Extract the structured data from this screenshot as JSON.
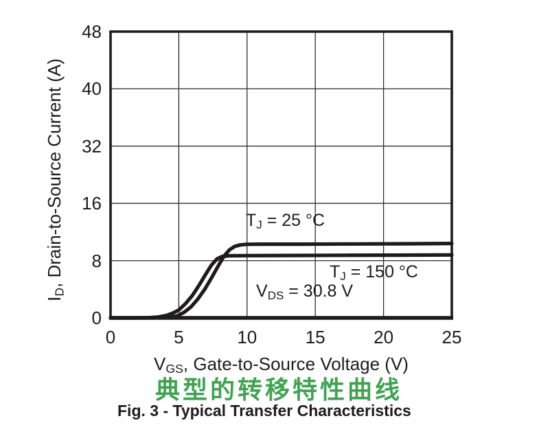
{
  "figure": {
    "caption_cn": "典型的转移特性曲线",
    "caption": "Fig. 3 - Typical Transfer Characteristics",
    "caption_cn_color": "#3FA351",
    "ink_color": "#1D1B1C"
  },
  "chart_data": {
    "type": "line",
    "title": "Fig. 3 - Typical Transfer Characteristics",
    "title_cn": "典型的转移特性曲线",
    "xlabel": {
      "prefix": "V",
      "sub": "GS",
      "rest": ", Gate-to-Source Voltage (V)"
    },
    "ylabel": {
      "prefix": "I",
      "sub": "D",
      "rest": ", Drain-to-Source Current (A)"
    },
    "xlim": [
      0,
      25
    ],
    "x_ticks": [
      "0",
      "5",
      "10",
      "15",
      "20",
      "25"
    ],
    "x_tick_values": [
      0,
      5,
      10,
      15,
      20,
      25
    ],
    "y_ticks": [
      "0",
      "8",
      "16",
      "32",
      "40",
      "48"
    ],
    "y_tick_values": [
      0,
      8,
      16,
      32,
      40,
      48
    ],
    "grid": true,
    "legend_position": "none",
    "annotations": [
      {
        "prefix": "T",
        "sub": "J",
        "rest": " = 25 °C"
      },
      {
        "prefix": "T",
        "sub": "J",
        "rest": " = 150 °C"
      },
      {
        "prefix": "V",
        "sub": "DS",
        "rest": " = 30.8 V"
      }
    ],
    "series": [
      {
        "name": "TJ = 25 °C",
        "points": [
          [
            0,
            0
          ],
          [
            2.0,
            0
          ],
          [
            3.0,
            0
          ],
          [
            3.8,
            0.03
          ],
          [
            4.4,
            0.1
          ],
          [
            4.9,
            0.3
          ],
          [
            5.4,
            0.8
          ],
          [
            5.9,
            1.55
          ],
          [
            6.4,
            2.65
          ],
          [
            6.9,
            4.0
          ],
          [
            7.4,
            5.6
          ],
          [
            7.9,
            7.3
          ],
          [
            8.3,
            8.6
          ],
          [
            8.7,
            9.5
          ],
          [
            9.1,
            10.0
          ],
          [
            9.5,
            10.2
          ],
          [
            10.0,
            10.28
          ],
          [
            11,
            10.3
          ],
          [
            14,
            10.3
          ],
          [
            18,
            10.33
          ],
          [
            22,
            10.36
          ],
          [
            25,
            10.4
          ]
        ]
      },
      {
        "name": "TJ = 150 °C",
        "points": [
          [
            0,
            0
          ],
          [
            1.8,
            0
          ],
          [
            2.8,
            0.03
          ],
          [
            3.5,
            0.12
          ],
          [
            4.1,
            0.35
          ],
          [
            4.6,
            0.7
          ],
          [
            5.0,
            1.1
          ],
          [
            5.5,
            2.0
          ],
          [
            6.0,
            3.15
          ],
          [
            6.5,
            4.6
          ],
          [
            7.0,
            6.2
          ],
          [
            7.4,
            7.4
          ],
          [
            7.8,
            8.25
          ],
          [
            8.2,
            8.6
          ],
          [
            8.7,
            8.68
          ],
          [
            10,
            8.7
          ],
          [
            13,
            8.72
          ],
          [
            17,
            8.75
          ],
          [
            21,
            8.77
          ],
          [
            25,
            8.8
          ]
        ]
      }
    ]
  }
}
